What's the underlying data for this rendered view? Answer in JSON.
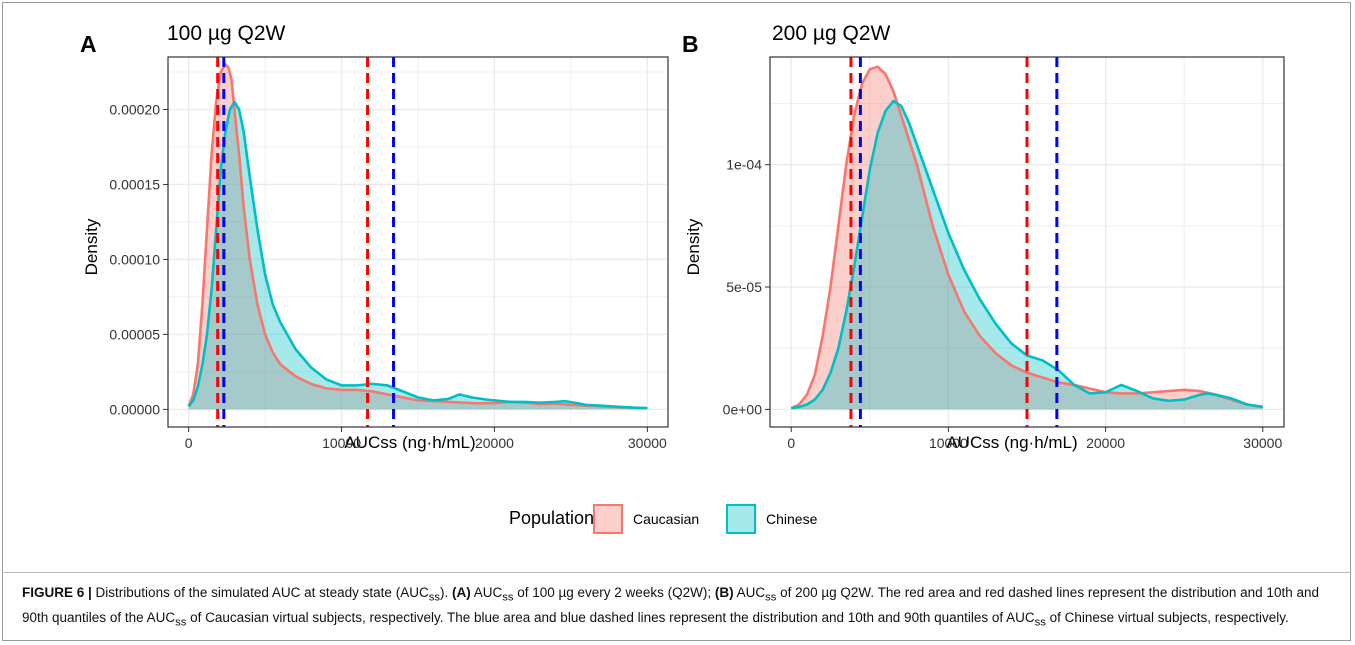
{
  "colors": {
    "caucasian_fill": "#f8766d",
    "chinese_fill": "#00bfc4",
    "caucasian_line": "#f8766d",
    "chinese_line": "#00bfc4",
    "caucasian_quantile_line": "#ff0000",
    "chinese_quantile_line": "#0000ff",
    "grid": "#ebebeb",
    "panel_border": "#333333"
  },
  "legend": {
    "title": "Population",
    "placement": "bottom-center",
    "entries": [
      "Caucasian",
      "Chinese"
    ]
  },
  "chart_data": [
    {
      "type": "area",
      "panel": "A",
      "title": "100 µg Q2W",
      "xlabel": "AUCss (ng·h/mL)",
      "ylabel": "Density",
      "xlim": [
        0,
        30000
      ],
      "ylim": [
        0,
        0.000235
      ],
      "x_ticks": [
        0,
        10000,
        20000,
        30000
      ],
      "x_tick_labels": [
        "0",
        "10000",
        "20000",
        "30000"
      ],
      "y_ticks": [
        0,
        5e-05,
        0.0001,
        0.00015,
        0.0002
      ],
      "y_tick_labels": [
        "0.00000",
        "0.00005",
        "0.00010",
        "0.00015",
        "0.00020"
      ],
      "grid": true,
      "series": [
        {
          "name": "Caucasian",
          "x": [
            0,
            300,
            600,
            900,
            1200,
            1500,
            1800,
            2100,
            2400,
            2600,
            2800,
            3000,
            3300,
            3600,
            4000,
            4500,
            5000,
            5500,
            6000,
            7000,
            8000,
            9000,
            10000,
            11000,
            12000,
            13000,
            14000,
            15000,
            16000,
            17000,
            18000,
            19000,
            20000,
            21000,
            22000,
            23000,
            24000,
            25000,
            26000,
            27000,
            28000,
            29000,
            30000
          ],
          "y": [
            2e-06,
            1e-05,
            3e-05,
            7e-05,
            0.00012,
            0.00017,
            0.000205,
            0.000225,
            0.00023,
            0.000228,
            0.00022,
            0.0002,
            0.00017,
            0.000135,
            0.0001,
            7e-05,
            5e-05,
            3.8e-05,
            3e-05,
            2.2e-05,
            1.7e-05,
            1.4e-05,
            1.3e-05,
            1.3e-05,
            1.2e-05,
            1e-05,
            8e-06,
            6e-06,
            5.5e-06,
            5e-06,
            4.5e-06,
            4e-06,
            4.2e-06,
            5e-06,
            4.5e-06,
            3.5e-06,
            3.8e-06,
            3e-06,
            2.5e-06,
            2e-06,
            1.5e-06,
            1e-06,
            8e-07
          ]
        },
        {
          "name": "Chinese",
          "x": [
            0,
            300,
            600,
            900,
            1200,
            1500,
            1800,
            2100,
            2400,
            2700,
            3000,
            3300,
            3600,
            4000,
            4500,
            5000,
            5500,
            6000,
            7000,
            8000,
            9000,
            10000,
            11000,
            12000,
            13000,
            14000,
            15000,
            16000,
            17000,
            17700,
            18500,
            19500,
            20000,
            21000,
            22000,
            23000,
            24000,
            24600,
            25500,
            26000,
            27000,
            28000,
            29000,
            30000
          ],
          "y": [
            2e-06,
            6e-06,
            1.5e-05,
            3e-05,
            5e-05,
            8e-05,
            0.00012,
            0.00016,
            0.000185,
            0.0002,
            0.000205,
            0.0002,
            0.000185,
            0.000155,
            0.00012,
            9e-05,
            7e-05,
            5.8e-05,
            4e-05,
            2.8e-05,
            2e-05,
            1.6e-05,
            1.6e-05,
            1.7e-05,
            1.6e-05,
            1.2e-05,
            8e-06,
            6e-06,
            7e-06,
            1e-05,
            8e-06,
            6.5e-06,
            6e-06,
            5e-06,
            5e-06,
            4.5e-06,
            5e-06,
            5.5e-06,
            4e-06,
            3e-06,
            2.5e-06,
            1.8e-06,
            1.2e-06,
            8e-07
          ]
        }
      ],
      "quantiles": [
        {
          "population": "Caucasian",
          "x": [
            1900,
            11700
          ]
        },
        {
          "population": "Chinese",
          "x": [
            2300,
            13400
          ]
        }
      ]
    },
    {
      "type": "area",
      "panel": "B",
      "title": "200 µg Q2W",
      "xlabel": "AUCss (ng·h/mL)",
      "ylabel": "Density",
      "xlim": [
        0,
        30000
      ],
      "ylim": [
        0,
        0.000144
      ],
      "x_ticks": [
        0,
        10000,
        20000,
        30000
      ],
      "x_tick_labels": [
        "0",
        "10000",
        "20000",
        "30000"
      ],
      "y_ticks": [
        0,
        5e-05,
        0.0001
      ],
      "y_tick_labels": [
        "0e+00",
        "5e-05",
        "1e-04"
      ],
      "grid": true,
      "series": [
        {
          "name": "Caucasian",
          "x": [
            0,
            500,
            1000,
            1500,
            2000,
            2500,
            3000,
            3500,
            4000,
            4500,
            5000,
            5500,
            6000,
            6500,
            7000,
            8000,
            9000,
            10000,
            11000,
            12000,
            13000,
            14000,
            15000,
            16000,
            17000,
            18000,
            19000,
            20000,
            21000,
            22000,
            23000,
            24000,
            25000,
            26000,
            27000,
            28000,
            29000,
            30000
          ],
          "y": [
            5e-07,
            2e-06,
            6e-06,
            1.4e-05,
            3e-05,
            5e-05,
            7.5e-05,
            0.0001,
            0.00012,
            0.000133,
            0.000139,
            0.00014,
            0.000137,
            0.00013,
            0.00012,
            0.0001,
            7.5e-05,
            5.5e-05,
            4e-05,
            3e-05,
            2.3e-05,
            1.8e-05,
            1.5e-05,
            1.3e-05,
            1.1e-05,
            1e-05,
            8.5e-06,
            7e-06,
            6.5e-06,
            6.5e-06,
            7e-06,
            7.5e-06,
            8e-06,
            7.5e-06,
            6e-06,
            4e-06,
            2e-06,
            1e-06
          ]
        },
        {
          "name": "Chinese",
          "x": [
            0,
            500,
            1000,
            1500,
            2000,
            2500,
            3000,
            3500,
            4000,
            4500,
            5000,
            5500,
            6000,
            6500,
            7000,
            7500,
            8000,
            9000,
            10000,
            11000,
            12000,
            13000,
            14000,
            15000,
            16000,
            17000,
            18000,
            19000,
            20000,
            21000,
            22000,
            23000,
            24000,
            25000,
            26000,
            26500,
            27000,
            28000,
            29000,
            30000
          ],
          "y": [
            5e-07,
            1e-06,
            2e-06,
            4e-06,
            8e-06,
            1.5e-05,
            2.5e-05,
            4e-05,
            5.8e-05,
            7.8e-05,
            9.8e-05,
            0.000113,
            0.000122,
            0.000126,
            0.000124,
            0.000117,
            0.000108,
            9e-05,
            7.2e-05,
            5.7e-05,
            4.5e-05,
            3.5e-05,
            2.7e-05,
            2.2e-05,
            2e-05,
            1.6e-05,
            1e-05,
            6.5e-06,
            7e-06,
            1e-05,
            7.5e-06,
            4.5e-06,
            3.5e-06,
            4e-06,
            6e-06,
            6.5e-06,
            6e-06,
            4.5e-06,
            2e-06,
            1e-06
          ]
        }
      ],
      "quantiles": [
        {
          "population": "Caucasian",
          "x": [
            3800,
            15000
          ]
        },
        {
          "population": "Chinese",
          "x": [
            4400,
            16900
          ]
        }
      ]
    }
  ],
  "caption": {
    "figure_label": "FIGURE 6 |",
    "intro": " Distributions of the simulated AUC at steady state (AUC",
    "sub_ss": "ss",
    "intro_end": ").",
    "partA_label": " (A)",
    "partA_text_1": " AUC",
    "partA_text_2": " of 100 µg every 2 weeks (Q2W);",
    "partB_label": " (B)",
    "partB_text_1": " AUC",
    "partB_text_2": " of 200 µg Q2W. The red area and red dashed lines represent the distribution and 10th and 90th quantiles of the AUC",
    "partB_text_3": " of Caucasian virtual subjects, respectively. The blue area and blue dashed lines represent the distribution and 10th and 90th quantiles of AUC",
    "partB_text_4": " of Chinese virtual subjects, respectively."
  }
}
